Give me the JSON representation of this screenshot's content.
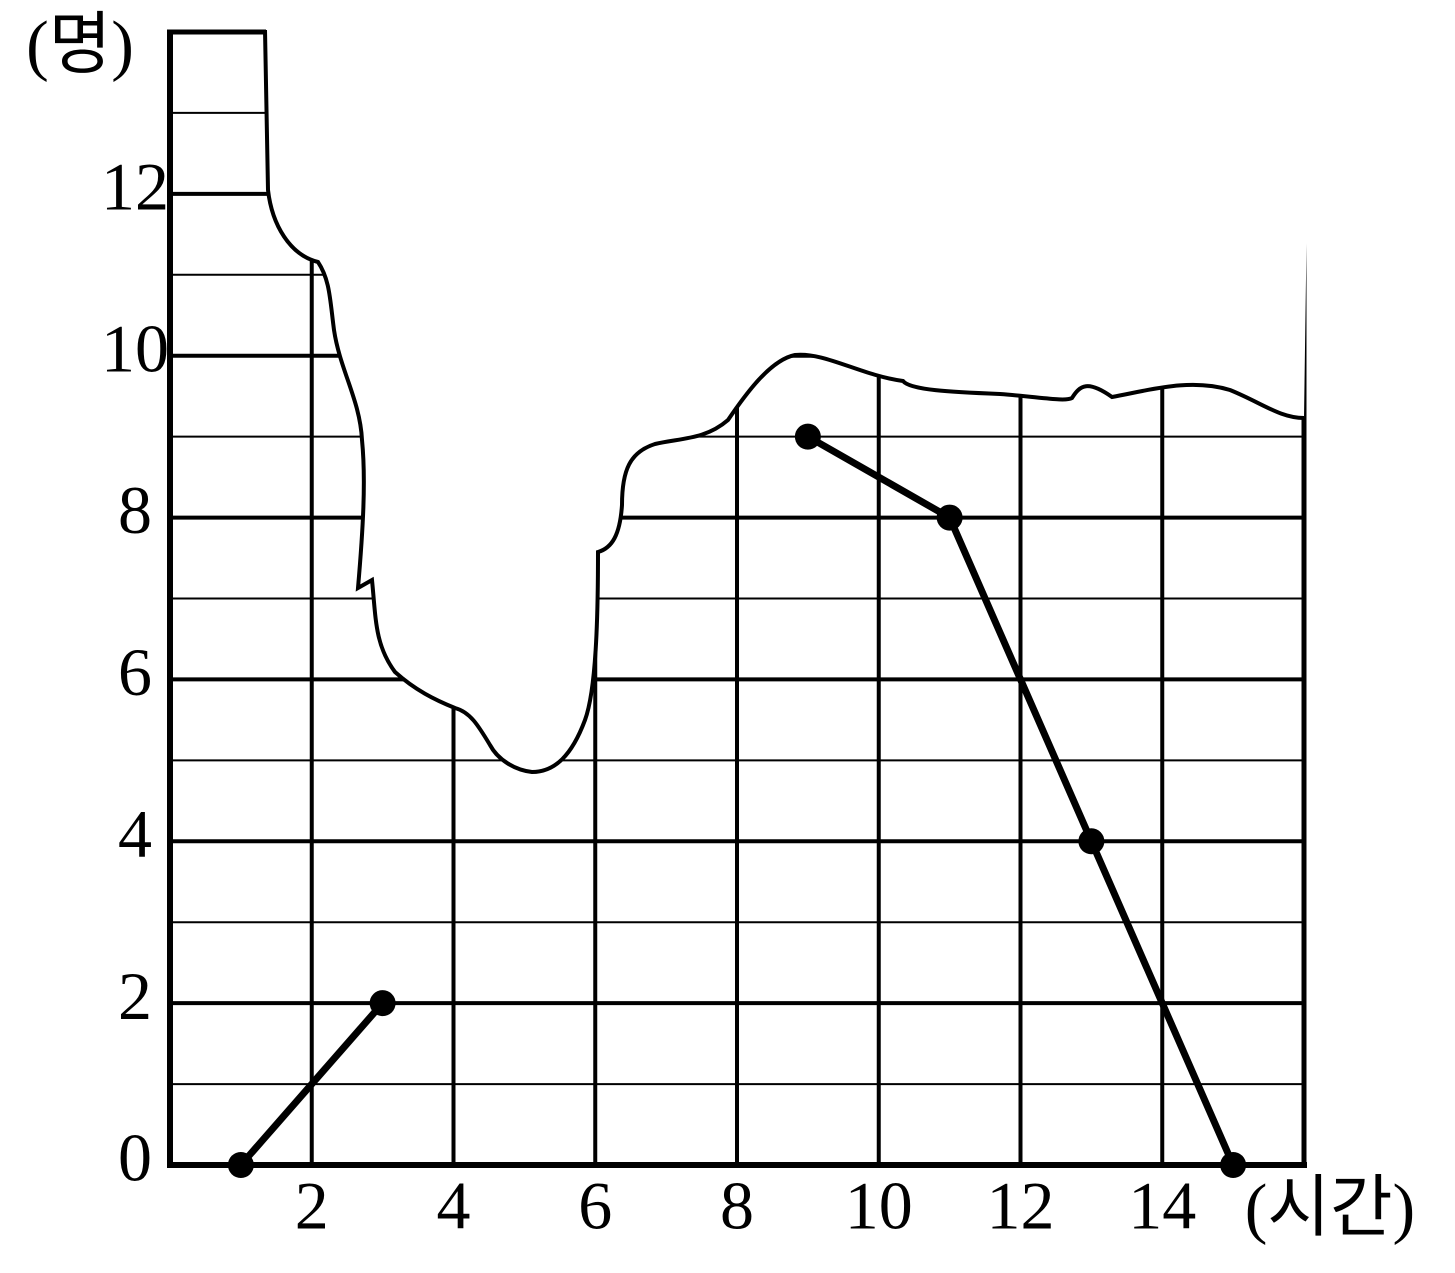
{
  "chart_data": {
    "type": "line",
    "y_label": "(명)",
    "x_label": "(시간)",
    "x": [
      1,
      3,
      5,
      7,
      9,
      11,
      13,
      15
    ],
    "values": [
      0,
      2,
      null,
      null,
      9,
      8,
      4,
      0
    ],
    "color": "#000000",
    "xlim": [
      0,
      16
    ],
    "xticks": [
      2,
      4,
      6,
      8,
      10,
      12,
      14
    ],
    "ylim": [
      0,
      14
    ],
    "yticks": [
      0,
      2,
      4,
      6,
      8,
      10,
      12
    ],
    "grid": true
  }
}
